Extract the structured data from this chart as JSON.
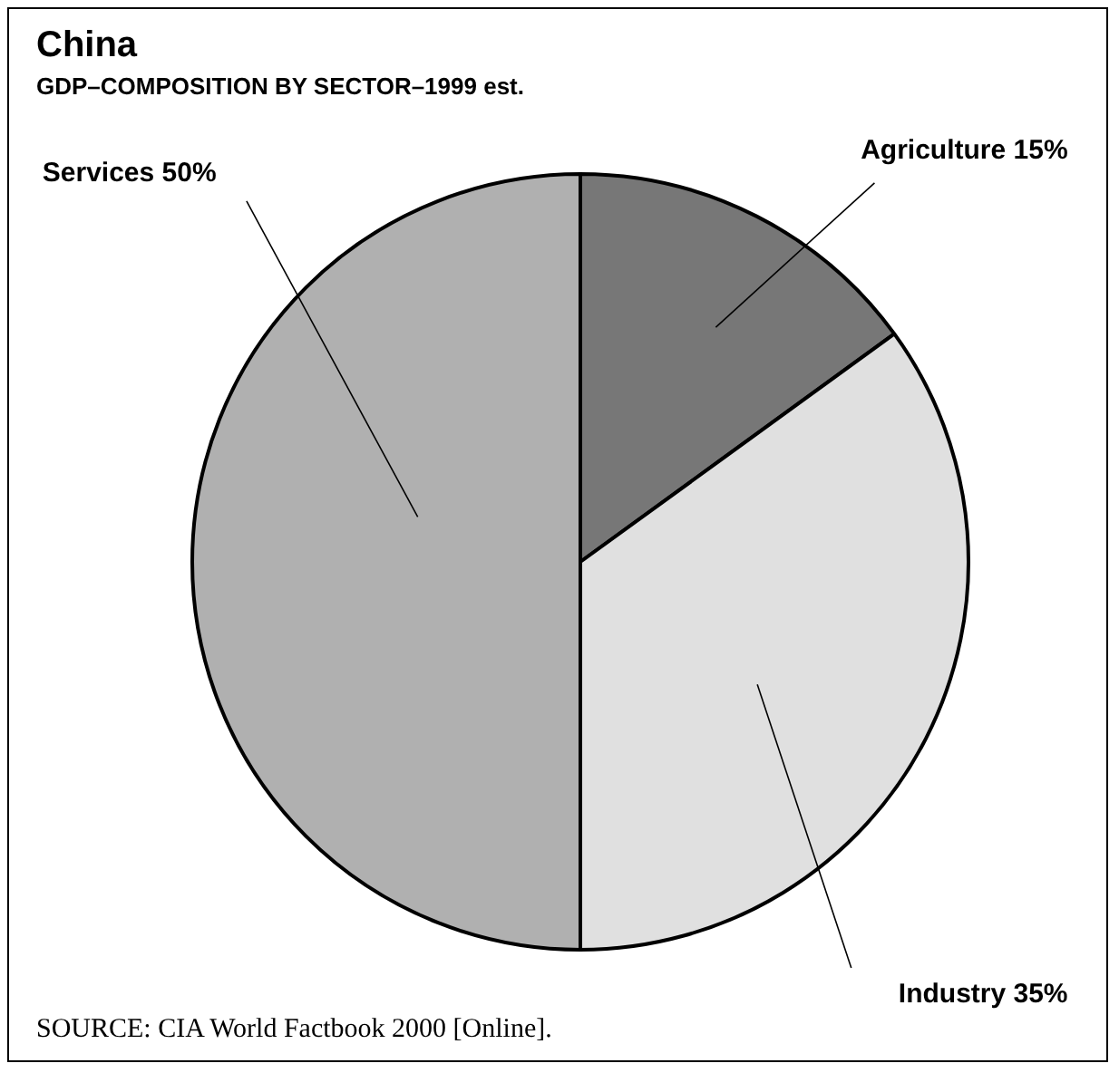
{
  "chart_data": {
    "type": "pie",
    "title": "China",
    "subtitle": "GDP–COMPOSITION BY SECTOR–1999 est.",
    "categories": [
      "Agriculture",
      "Industry",
      "Services"
    ],
    "values": [
      15,
      35,
      50
    ],
    "value_labels": [
      "15%",
      "35%",
      "50%"
    ],
    "colors": [
      "#777777",
      "#e0e0e0",
      "#b0b0b0"
    ],
    "legend": false,
    "annotations": [
      "SOURCE: CIA World Factbook 2000 [Online]."
    ]
  }
}
